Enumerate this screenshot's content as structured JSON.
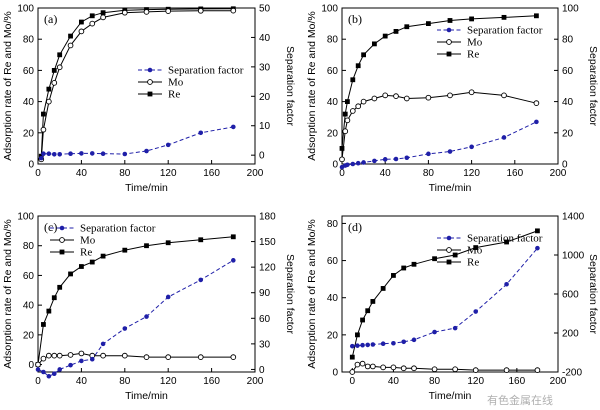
{
  "figure": {
    "watermark": "有色金属在线"
  },
  "chart_data": [
    {
      "panel": "(a)",
      "type": "line",
      "xlabel": "Time/min",
      "ylabel": "Adsorption rate of Re and Mo/%",
      "y2label": "Separation factor",
      "xlim": [
        0,
        200
      ],
      "xticks": [
        0,
        40,
        80,
        120,
        160,
        200
      ],
      "ylim": [
        0,
        100
      ],
      "yticks": [
        0,
        20,
        40,
        60,
        80,
        100
      ],
      "y2lim": [
        -3,
        50
      ],
      "y2ticks": [
        0,
        10,
        20,
        30,
        40,
        50
      ],
      "legend_position": "middle-right",
      "legend": [
        "Separation factor",
        "Mo",
        "Re"
      ],
      "series": [
        {
          "name": "Re",
          "axis": "left",
          "marker": "square",
          "line": "solid",
          "color": "#000000",
          "x": [
            3,
            5,
            10,
            15,
            20,
            30,
            40,
            50,
            60,
            80,
            100,
            120,
            150,
            180
          ],
          "y": [
            5,
            32,
            48,
            60,
            70,
            82,
            91,
            95,
            97,
            98.5,
            99,
            99.2,
            99.4,
            99.5
          ]
        },
        {
          "name": "Mo",
          "axis": "left",
          "marker": "circle-open",
          "line": "solid",
          "color": "#000000",
          "x": [
            3,
            5,
            10,
            15,
            20,
            30,
            40,
            50,
            60,
            80,
            100,
            120,
            150,
            180
          ],
          "y": [
            3,
            22,
            40,
            52,
            62,
            76,
            85,
            90,
            94,
            97,
            97.5,
            98,
            98.2,
            98.3
          ]
        },
        {
          "name": "Separation factor",
          "axis": "right",
          "marker": "circle-filled",
          "line": "dashed",
          "color": "#1f1fa8",
          "x": [
            3,
            5,
            10,
            15,
            20,
            30,
            40,
            50,
            60,
            80,
            100,
            120,
            150,
            180
          ],
          "y": [
            -1,
            0.5,
            0.5,
            0.3,
            0.3,
            0.5,
            0.6,
            0.6,
            0.5,
            0.4,
            1.4,
            3.5,
            7.6,
            9.6
          ]
        }
      ]
    },
    {
      "panel": "(b)",
      "type": "line",
      "xlabel": "Time/min",
      "ylabel": "Adsorption rate of Re and Mo/%",
      "y2label": "Separation factor",
      "xlim": [
        0,
        200
      ],
      "xticks": [
        0,
        40,
        80,
        120,
        160,
        200
      ],
      "ylim": [
        0,
        100
      ],
      "yticks": [
        0,
        20,
        40,
        60,
        80,
        100
      ],
      "y2lim": [
        0,
        100
      ],
      "y2ticks": [
        0,
        20,
        40,
        60,
        80,
        100
      ],
      "legend_position": "top-right",
      "legend": [
        "Separation factor",
        "Mo",
        "Re"
      ],
      "series": [
        {
          "name": "Re",
          "axis": "left",
          "marker": "square",
          "line": "solid",
          "color": "#000000",
          "x": [
            0,
            3,
            5,
            10,
            15,
            20,
            30,
            40,
            50,
            60,
            80,
            100,
            120,
            150,
            180
          ],
          "y": [
            10,
            32,
            40,
            54,
            63,
            70,
            77,
            82,
            85,
            88,
            90,
            92,
            93,
            94,
            95
          ]
        },
        {
          "name": "Mo",
          "axis": "left",
          "marker": "circle-open",
          "line": "solid",
          "color": "#000000",
          "x": [
            0,
            3,
            5,
            10,
            15,
            20,
            30,
            40,
            50,
            60,
            80,
            100,
            120,
            150,
            180
          ],
          "y": [
            3,
            21,
            28,
            34,
            37,
            40,
            42,
            44,
            43.5,
            42,
            42.5,
            44,
            46,
            44,
            39
          ]
        },
        {
          "name": "Separation factor",
          "axis": "right",
          "marker": "circle-filled",
          "line": "dashed",
          "color": "#1f1fa8",
          "x": [
            0,
            3,
            5,
            10,
            15,
            20,
            30,
            40,
            50,
            60,
            80,
            100,
            120,
            150,
            180
          ],
          "y": [
            -2,
            -1,
            -0.5,
            0,
            0.5,
            1,
            2,
            3,
            3.2,
            4,
            6.5,
            8,
            11,
            17,
            27
          ]
        }
      ]
    },
    {
      "panel": "(c)",
      "type": "line",
      "xlabel": "Time/min",
      "ylabel": "Adsorption rate of Re and Mo/%",
      "y2label": "Separation factor",
      "xlim": [
        0,
        200
      ],
      "xticks": [
        0,
        40,
        80,
        120,
        160,
        200
      ],
      "ylim": [
        -5,
        100
      ],
      "yticks": [
        0,
        20,
        40,
        60,
        80,
        100
      ],
      "y2lim": [
        -3,
        180
      ],
      "y2ticks": [
        0,
        30,
        60,
        90,
        120,
        150,
        180
      ],
      "legend_position": "top-left",
      "legend": [
        "Separation factor",
        "Mo",
        "Re"
      ],
      "series": [
        {
          "name": "Re",
          "axis": "left",
          "marker": "square",
          "line": "solid",
          "color": "#000000",
          "x": [
            0,
            5,
            10,
            15,
            20,
            30,
            40,
            50,
            60,
            80,
            100,
            120,
            150,
            180
          ],
          "y": [
            0,
            27,
            36,
            45,
            52,
            61,
            66,
            69,
            73,
            77,
            80,
            82,
            84,
            86
          ]
        },
        {
          "name": "Mo",
          "axis": "left",
          "marker": "circle-open",
          "line": "solid",
          "color": "#000000",
          "x": [
            0,
            5,
            10,
            15,
            20,
            30,
            40,
            50,
            60,
            80,
            100,
            120,
            150,
            180
          ],
          "y": [
            0,
            4,
            6,
            6,
            6,
            6.5,
            7.5,
            6,
            6,
            6,
            5,
            5,
            5,
            5
          ]
        },
        {
          "name": "Separation factor",
          "axis": "right",
          "marker": "circle-filled",
          "line": "dashed",
          "color": "#1f1fa8",
          "x": [
            0,
            5,
            10,
            15,
            20,
            30,
            40,
            50,
            60,
            80,
            100,
            120,
            150,
            180
          ],
          "y": [
            0,
            -3,
            -8,
            -5,
            0,
            5,
            10,
            12,
            30,
            48,
            62,
            85,
            105,
            128
          ]
        }
      ]
    },
    {
      "panel": "(d)",
      "type": "line",
      "xlabel": "Time/min",
      "ylabel": "Adsorption rate of Re and Mo/%",
      "y2label": "Separation factor",
      "xlim": [
        -10,
        200
      ],
      "xticks": [
        0,
        40,
        80,
        120,
        160,
        200
      ],
      "ylim": [
        0,
        84
      ],
      "yticks": [
        0,
        20,
        40,
        60,
        80
      ],
      "y2lim": [
        -200,
        1400
      ],
      "y2ticks": [
        -200,
        200,
        600,
        1000,
        1400
      ],
      "legend_position": "top-right",
      "legend": [
        "Separation factor",
        "Mo",
        "Re"
      ],
      "series": [
        {
          "name": "Re",
          "axis": "left",
          "marker": "square",
          "line": "solid",
          "color": "#000000",
          "x": [
            0,
            5,
            10,
            15,
            20,
            30,
            40,
            50,
            60,
            80,
            100,
            120,
            150,
            180
          ],
          "y": [
            8,
            20,
            28,
            33,
            38,
            45,
            52,
            56,
            58,
            61,
            63,
            67,
            70,
            76
          ]
        },
        {
          "name": "Mo",
          "axis": "left",
          "marker": "circle-open",
          "line": "solid",
          "color": "#000000",
          "x": [
            0,
            5,
            10,
            15,
            20,
            30,
            40,
            50,
            60,
            80,
            100,
            120,
            150,
            180
          ],
          "y": [
            0,
            4,
            4.5,
            3,
            3,
            2.5,
            2.5,
            2,
            2,
            1.5,
            1.5,
            1,
            1,
            1
          ]
        },
        {
          "name": "Separation factor",
          "axis": "right",
          "marker": "circle-filled",
          "line": "dashed",
          "color": "#1f1fa8",
          "x": [
            0,
            5,
            10,
            15,
            20,
            30,
            40,
            50,
            60,
            80,
            100,
            120,
            150,
            180
          ],
          "y": [
            65,
            70,
            75,
            78,
            82,
            90,
            95,
            110,
            130,
            210,
            250,
            420,
            700,
            1070
          ]
        }
      ]
    }
  ]
}
